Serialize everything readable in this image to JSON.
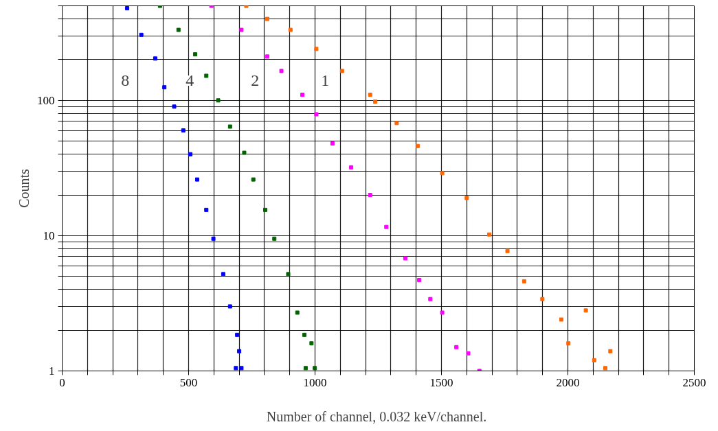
{
  "chart_data": {
    "type": "scatter",
    "xlabel": "Number of channel,  0.032 keV/channel.",
    "ylabel": "Counts",
    "log": "y",
    "grid": true,
    "marker": "square",
    "xlim": [
      0,
      2500
    ],
    "ylim": [
      1,
      500
    ],
    "xticks": [
      0,
      {
        "value": 100,
        "label": null
      },
      {
        "value": 200,
        "label": null
      },
      {
        "value": 300,
        "label": null
      },
      {
        "value": 400,
        "label": null
      },
      500,
      {
        "value": 600,
        "label": null
      },
      {
        "value": 700,
        "label": null
      },
      {
        "value": 800,
        "label": null
      },
      {
        "value": 900,
        "label": null
      },
      1000,
      {
        "value": 1100,
        "label": null
      },
      {
        "value": 1200,
        "label": null
      },
      {
        "value": 1300,
        "label": null
      },
      {
        "value": 1400,
        "label": null
      },
      1500,
      {
        "value": 1600,
        "label": null
      },
      {
        "value": 1700,
        "label": null
      },
      {
        "value": 1800,
        "label": null
      },
      {
        "value": 1900,
        "label": null
      },
      2000,
      {
        "value": 2100,
        "label": null
      },
      {
        "value": 2200,
        "label": null
      },
      {
        "value": 2300,
        "label": null
      },
      {
        "value": 2400,
        "label": null
      },
      2500
    ],
    "yticks": [
      1,
      {
        "value": 2,
        "label": null
      },
      {
        "value": 3,
        "label": null
      },
      {
        "value": 4,
        "label": null
      },
      {
        "value": 5,
        "label": null
      },
      {
        "value": 6,
        "label": null
      },
      {
        "value": 7,
        "label": null
      },
      {
        "value": 8,
        "label": null
      },
      {
        "value": 9,
        "label": null
      },
      10,
      {
        "value": 20,
        "label": null
      },
      {
        "value": 30,
        "label": null
      },
      {
        "value": 40,
        "label": null
      },
      {
        "value": 50,
        "label": null
      },
      {
        "value": 60,
        "label": null
      },
      {
        "value": 70,
        "label": null
      },
      {
        "value": 80,
        "label": null
      },
      {
        "value": 90,
        "label": null
      },
      100,
      {
        "value": 200,
        "label": null
      },
      {
        "value": 300,
        "label": null
      },
      {
        "value": 400,
        "label": null
      },
      {
        "value": 500,
        "label": null
      }
    ],
    "series": [
      {
        "color": "#0000ff",
        "x": [
          257,
          313,
          368,
          404,
          443,
          479,
          507,
          534,
          570,
          598,
          637,
          664,
          687,
          692,
          700,
          709
        ],
        "values": [
          480,
          305,
          204,
          125,
          90,
          60,
          40,
          26,
          15.5,
          9.5,
          5.2,
          3.0,
          1.05,
          1.85,
          1.4,
          1.05
        ]
      },
      {
        "color": "#006400",
        "x": [
          387,
          460,
          526,
          570,
          617,
          664,
          720,
          756,
          803,
          839,
          894,
          930,
          958,
          963,
          986,
          999
        ],
        "values": [
          500,
          332,
          219,
          152,
          100,
          64,
          41,
          26,
          15.5,
          9.5,
          5.2,
          2.7,
          1.85,
          1.05,
          1.6,
          1.05
        ]
      },
      {
        "color": "#ff00ff",
        "x": [
          590,
          709,
          811,
          867,
          950,
          1005,
          1069,
          1143,
          1218,
          1282,
          1357,
          1412,
          1456,
          1503,
          1559,
          1606,
          1650
        ],
        "values": [
          500,
          332,
          211,
          165,
          110,
          79,
          48,
          32,
          20,
          11.6,
          6.8,
          4.7,
          3.4,
          2.7,
          1.5,
          1.35,
          1.0
        ]
      },
      {
        "color": "#ff6600",
        "x": [
          728,
          811,
          903,
          1005,
          1107,
          1218,
          1238,
          1323,
          1406,
          1503,
          1600,
          1689,
          1761,
          1827,
          1899,
          1974,
          2002,
          2071,
          2104,
          2148,
          2168
        ],
        "values": [
          500,
          400,
          332,
          240,
          165,
          110,
          98,
          68,
          46,
          29,
          19,
          10.2,
          7.7,
          4.6,
          3.4,
          2.4,
          1.6,
          2.8,
          1.2,
          1.05,
          1.4
        ]
      }
    ],
    "annotations": [
      {
        "text": "8",
        "x": 249,
        "y": 140
      },
      {
        "text": "4",
        "x": 505,
        "y": 140
      },
      {
        "text": "2",
        "x": 763,
        "y": 140
      },
      {
        "text": "1",
        "x": 1040,
        "y": 140
      }
    ]
  }
}
